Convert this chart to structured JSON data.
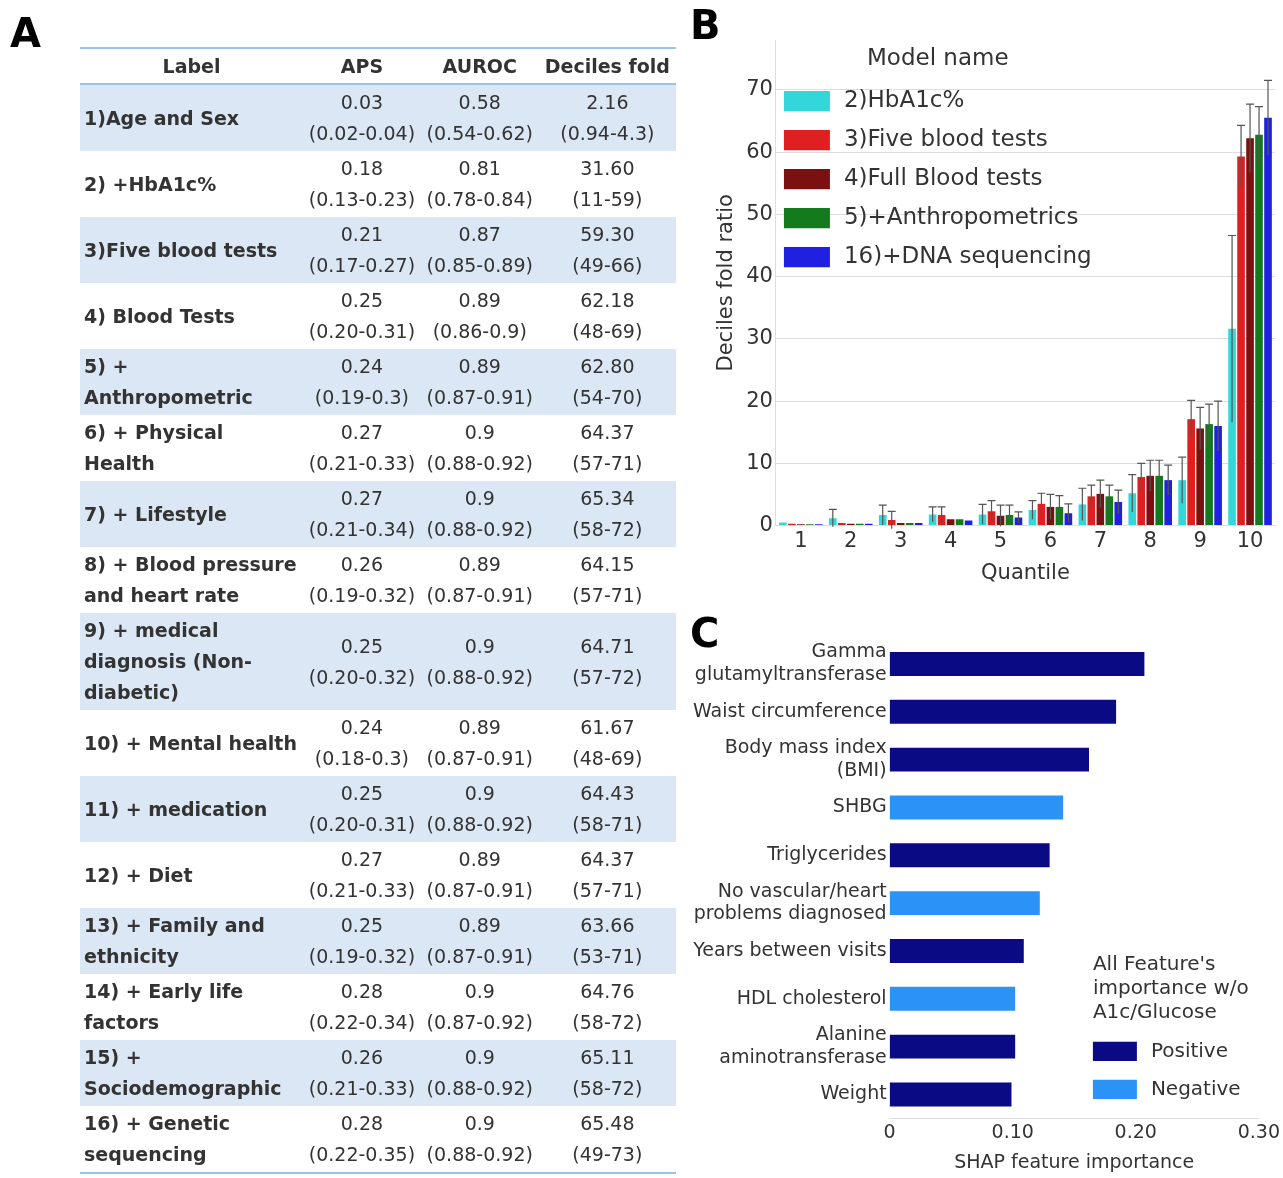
{
  "chart_data": [
    {
      "type": "heatmap",
      "title": "A",
      "ylabel": "Label",
      "categories": [
        "APS",
        "AUROC",
        "Deciles fold"
      ],
      "y_categories": [
        "1)Age and Sex",
        "2) +HbA1c%",
        "3)Five blood tests",
        "4) Blood Tests",
        "5) + Anthropometric",
        "6) + Physical Health",
        "7) + Lifestyle",
        "8) + Blood pressure and heart rate",
        "9) + medical diagnosis (Non-diabetic)",
        "10) + Mental health",
        "11) + medication",
        "12) + Diet",
        "13) + Family and ethnicity",
        "14) + Early life factors",
        "15) + Sociodemographic",
        "16) + Genetic sequencing"
      ],
      "cells": [
        [
          null,
          null,
          null
        ],
        [
          null,
          null,
          null
        ],
        [
          null,
          null,
          null
        ],
        [
          null,
          null,
          null
        ],
        [
          null,
          null,
          null
        ],
        [
          null,
          null,
          null
        ],
        [
          null,
          null,
          null
        ],
        [
          null,
          null,
          null
        ],
        [
          null,
          null,
          null
        ],
        [
          null,
          null,
          null
        ],
        [
          null,
          null,
          null
        ],
        [
          null,
          null,
          null
        ],
        [
          null,
          null,
          null
        ],
        [
          null,
          null,
          null
        ],
        [
          null,
          null,
          null
        ],
        [
          null,
          null,
          null
        ]
      ],
      "cell_labels": [
        [
          "0.03\n(0.02-0.04)",
          "0.58\n(0.54-0.62)",
          "2.16\n(0.94-4.3)"
        ],
        [
          "0.18\n(0.13-0.23)",
          "0.81\n(0.78-0.84)",
          "31.60\n(11-59)"
        ],
        [
          "0.21\n(0.17-0.27)",
          "0.87\n(0.85-0.89)",
          "59.30\n(49-66)"
        ],
        [
          "0.25\n(0.20-0.31)",
          "0.89\n(0.86-0.9)",
          "62.18\n(48-69)"
        ],
        [
          "0.24\n(0.19-0.3)",
          "0.89\n(0.87-0.91)",
          "62.80\n(54-70)"
        ],
        [
          "0.27\n(0.21-0.33)",
          "0.9\n(0.88-0.92)",
          "64.37\n(57-71)"
        ],
        [
          "0.27\n(0.21-0.34)",
          "0.9\n(0.88-0.92)",
          "65.34\n(58-72)"
        ],
        [
          "0.26\n(0.19-0.32)",
          "0.89\n(0.87-0.91)",
          "64.15\n(57-71)"
        ],
        [
          "0.25\n(0.20-0.32)",
          "0.9\n(0.88-0.92)",
          "64.71\n(57-72)"
        ],
        [
          "0.24\n(0.18-0.3)",
          "0.89\n(0.87-0.91)",
          "61.67\n(48-69)"
        ],
        [
          "0.25\n(0.20-0.31)",
          "0.9\n(0.88-0.92)",
          "64.43\n(58-71)"
        ],
        [
          "0.27\n(0.21-0.33)",
          "0.89\n(0.87-0.91)",
          "64.37\n(57-71)"
        ],
        [
          "0.25\n(0.19-0.32)",
          "0.89\n(0.87-0.91)",
          "63.66\n(53-71)"
        ],
        [
          "0.28\n(0.22-0.34)",
          "0.9\n(0.87-0.92)",
          "64.76\n(58-72)"
        ],
        [
          "0.26\n(0.21-0.33)",
          "0.9\n(0.88-0.92)",
          "65.11\n(58-72)"
        ],
        [
          "0.28\n(0.22-0.35)",
          "0.9\n(0.88-0.92)",
          "65.48\n(49-73)"
        ]
      ]
    },
    {
      "type": "bar",
      "title": "B",
      "xlabel": "Quantile",
      "ylabel": "Deciles fold ratio",
      "legend_title": "Model name",
      "legend": "top left",
      "grid": "y",
      "categories": [
        "1",
        "2",
        "3",
        "4",
        "5",
        "6",
        "7",
        "8",
        "9",
        "10"
      ],
      "ylim": [
        0,
        78
      ],
      "yticks": [
        0,
        10,
        20,
        30,
        40,
        50,
        60,
        70
      ],
      "series": [
        {
          "name": "2)HbA1c%",
          "color": "#33d6d9",
          "values": [
            0.5,
            1.2,
            1.7,
            1.8,
            1.8,
            2.5,
            3.4,
            5.2,
            7.3,
            31.6
          ],
          "errors": [
            null,
            1.4,
            1.6,
            1.2,
            1.6,
            1.5,
            2.6,
            3,
            3.7,
            15
          ]
        },
        {
          "name": "3)Five blood tests",
          "color": "#e02020",
          "values": [
            0.3,
            0.4,
            0.9,
            1.7,
            2.3,
            3.5,
            4.7,
            7.8,
            17.1,
            59.3
          ],
          "errors": [
            null,
            null,
            1.4,
            1.3,
            1.7,
            1.7,
            1.8,
            2.2,
            3,
            5
          ]
        },
        {
          "name": "4)Full Blood tests",
          "color": "#7a1010",
          "values": [
            0.2,
            0.3,
            0.4,
            1,
            1.6,
            3,
            5.1,
            8,
            15.6,
            62.2
          ],
          "errors": [
            null,
            null,
            null,
            null,
            1.7,
            2,
            2.2,
            2.5,
            3.4,
            5.5
          ]
        },
        {
          "name": "5)+Anthropometrics",
          "color": "#147a1e",
          "values": [
            0.2,
            0.3,
            0.4,
            1,
            1.7,
            3,
            4.7,
            8,
            16.3,
            62.8
          ],
          "errors": [
            null,
            null,
            null,
            null,
            1.6,
            1.8,
            1.8,
            2.5,
            3.2,
            4.5
          ]
        },
        {
          "name": "16)+DNA sequencing",
          "color": "#2020e0",
          "values": [
            0.2,
            0.3,
            0.4,
            0.8,
            1.3,
            2,
            3.8,
            7.3,
            16,
            65.5
          ],
          "errors": [
            null,
            null,
            null,
            null,
            0.9,
            1.5,
            1.9,
            2.4,
            4,
            6
          ]
        }
      ]
    },
    {
      "type": "bar",
      "title": "C",
      "orientation": "horizontal",
      "xlabel": "SHAP feature importance",
      "legend_title": "All Feature's importance w/o A1c/Glucose",
      "legend": "bottom right",
      "categories": [
        "Gamma glutamyltransferase",
        "Waist circumference",
        "Body mass index (BMI)",
        "SHBG",
        "Triglycerides",
        "No vascular/heart problems diagnosed",
        "Years between visits",
        "HDL cholesterol",
        "Alanine aminotransferase",
        "Weight"
      ],
      "xlim": [
        0,
        0.3
      ],
      "xticks": [
        0,
        {
          "value": 0.1,
          "label": "0.10"
        },
        {
          "value": 0.2,
          "label": "0.20"
        },
        {
          "value": 0.3,
          "label": "0.30"
        }
      ],
      "series": [
        {
          "name": "Positive",
          "color": "#0a0a85",
          "values": [
            0.207,
            0.184,
            0.162,
            null,
            0.13,
            null,
            0.109,
            null,
            0.102,
            0.099
          ]
        },
        {
          "name": "Negative",
          "color": "#2a93f5",
          "values": [
            null,
            null,
            null,
            0.141,
            null,
            0.122,
            null,
            0.102,
            null,
            null
          ]
        }
      ]
    }
  ]
}
